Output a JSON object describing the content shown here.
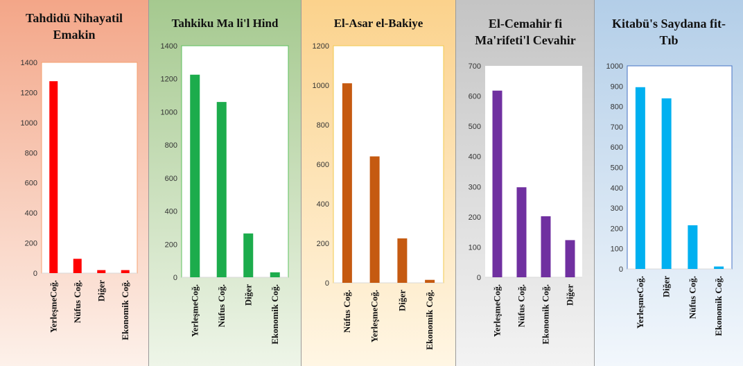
{
  "chart_data": [
    {
      "type": "bar",
      "title": "Tahdidü Nihayatil Emakin",
      "categories": [
        "YerleşmeCoğ.",
        "Nüfus Coğ.",
        "Diğer",
        "Ekonomik Coğ."
      ],
      "values": [
        1275,
        95,
        20,
        20
      ],
      "ylim": [
        0,
        1400
      ],
      "yticks": [
        0,
        200,
        400,
        600,
        800,
        1000,
        1200,
        1400
      ],
      "bar_color": "#ff0000",
      "frame_color": "#f4a070",
      "background": [
        "#f3a688",
        "#fdf1ea"
      ]
    },
    {
      "type": "bar",
      "title": "Tahkiku Ma li'l Hind",
      "categories": [
        "YerleşmeCoğ.",
        "Nüfus Coğ.",
        "Diğer",
        "Ekonomik Coğ."
      ],
      "values": [
        1225,
        1060,
        265,
        30
      ],
      "ylim": [
        0,
        1400
      ],
      "yticks": [
        0,
        200,
        400,
        600,
        800,
        1000,
        1200,
        1400
      ],
      "bar_color": "#1cac4c",
      "frame_color": "#5cc05c",
      "background": [
        "#a5c98f",
        "#eef5e8"
      ]
    },
    {
      "type": "bar",
      "title": "El-Asar el-Bakiye",
      "categories": [
        "Nüfus Coğ.",
        "YerleşmeCoğ.",
        "Diğer",
        "Ekonomik Coğ."
      ],
      "values": [
        1010,
        640,
        225,
        15
      ],
      "ylim": [
        0,
        1200
      ],
      "yticks": [
        0,
        200,
        400,
        600,
        800,
        1000,
        1200
      ],
      "bar_color": "#c55a11",
      "frame_color": "#f2c94c",
      "background": [
        "#fbd28c",
        "#fff6e4"
      ]
    },
    {
      "type": "bar",
      "title": "El-Cemahir fi Ma'rifeti'l Cevahir",
      "categories": [
        "YerleşmeCoğ.",
        "Nüfus Coğ.",
        "Ekonomik Coğ.",
        "Diğer"
      ],
      "values": [
        618,
        298,
        202,
        123
      ],
      "ylim": [
        0,
        700
      ],
      "yticks": [
        0,
        100,
        200,
        300,
        400,
        500,
        600,
        700
      ],
      "bar_color": "#7030a0",
      "frame_color": "",
      "background": [
        "#c4c4c4",
        "#f3f3f3"
      ]
    },
    {
      "type": "bar",
      "title": "Kitabü's Saydana fit-Tıb",
      "categories": [
        "YerleşmeCoğ.",
        "Diğer",
        "Nüfus Coğ.",
        "Ekonomik Coğ."
      ],
      "values": [
        895,
        840,
        215,
        12
      ],
      "ylim": [
        0,
        1000
      ],
      "yticks": [
        0,
        100,
        200,
        300,
        400,
        500,
        600,
        700,
        800,
        900,
        1000
      ],
      "bar_color": "#00b0f0",
      "frame_color": "#4472c4",
      "background": [
        "#b3cee8",
        "#f2f7fc"
      ]
    }
  ]
}
